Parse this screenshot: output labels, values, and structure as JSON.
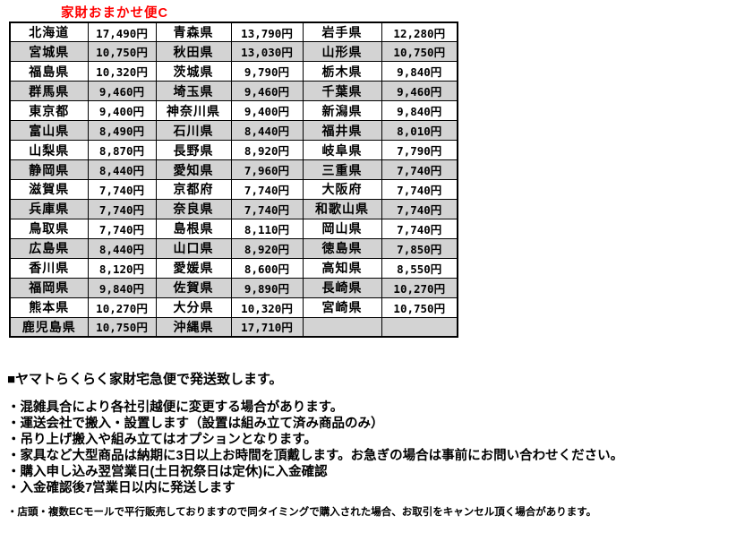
{
  "title": "家財おまかせ便C",
  "colors": {
    "title_red": "#ff0000",
    "alt_row_gray": "#d3d3d3",
    "border_black": "#000000"
  },
  "shipping_table": {
    "columns": [
      "prefecture",
      "price",
      "prefecture",
      "price",
      "prefecture",
      "price"
    ],
    "rows": [
      [
        "北海道",
        "17,490円",
        "青森県",
        "13,790円",
        "岩手県",
        "12,280円"
      ],
      [
        "宮城県",
        "10,750円",
        "秋田県",
        "13,030円",
        "山形県",
        "10,750円"
      ],
      [
        "福島県",
        "10,320円",
        "茨城県",
        "9,790円",
        "栃木県",
        "9,840円"
      ],
      [
        "群馬県",
        "9,460円",
        "埼玉県",
        "9,460円",
        "千葉県",
        "9,460円"
      ],
      [
        "東京都",
        "9,400円",
        "神奈川県",
        "9,400円",
        "新潟県",
        "9,840円"
      ],
      [
        "富山県",
        "8,490円",
        "石川県",
        "8,440円",
        "福井県",
        "8,010円"
      ],
      [
        "山梨県",
        "8,870円",
        "長野県",
        "8,920円",
        "岐阜県",
        "7,790円"
      ],
      [
        "静岡県",
        "8,440円",
        "愛知県",
        "7,960円",
        "三重県",
        "7,740円"
      ],
      [
        "滋賀県",
        "7,740円",
        "京都府",
        "7,740円",
        "大阪府",
        "7,740円"
      ],
      [
        "兵庫県",
        "7,740円",
        "奈良県",
        "7,740円",
        "和歌山県",
        "7,740円"
      ],
      [
        "鳥取県",
        "7,740円",
        "島根県",
        "8,110円",
        "岡山県",
        "7,740円"
      ],
      [
        "広島県",
        "8,440円",
        "山口県",
        "8,920円",
        "徳島県",
        "7,850円"
      ],
      [
        "香川県",
        "8,120円",
        "愛媛県",
        "8,600円",
        "高知県",
        "8,550円"
      ],
      [
        "福岡県",
        "9,840円",
        "佐賀県",
        "9,890円",
        "長崎県",
        "10,270円"
      ],
      [
        "熊本県",
        "10,270円",
        "大分県",
        "10,320円",
        "宮崎県",
        "10,750円"
      ],
      [
        "鹿児島県",
        "10,750円",
        "沖縄県",
        "17,710円",
        "",
        ""
      ]
    ]
  },
  "notes": {
    "heading": "■ヤマトらくらく家財宅急便で発送致します。",
    "items": [
      "・混雑具合により各社引越便に変更する場合があります。",
      "・運送会社で搬入・設置します（設置は組み立て済み商品のみ）",
      "・吊り上げ搬入や組み立てはオプションとなります。",
      "・家具など大型商品は納期に3日以上お時間を頂戴します。お急ぎの場合は事前にお問い合わせください。",
      "・購入申し込み翌営業日(土日祝祭日は定休)に入金確認",
      "・入金確認後7営業日以内に発送します"
    ],
    "footnote": "・店頭・複数ECモールで平行販売しておりますので同タイミングで購入された場合、お取引をキャンセル頂く場合があります。"
  }
}
